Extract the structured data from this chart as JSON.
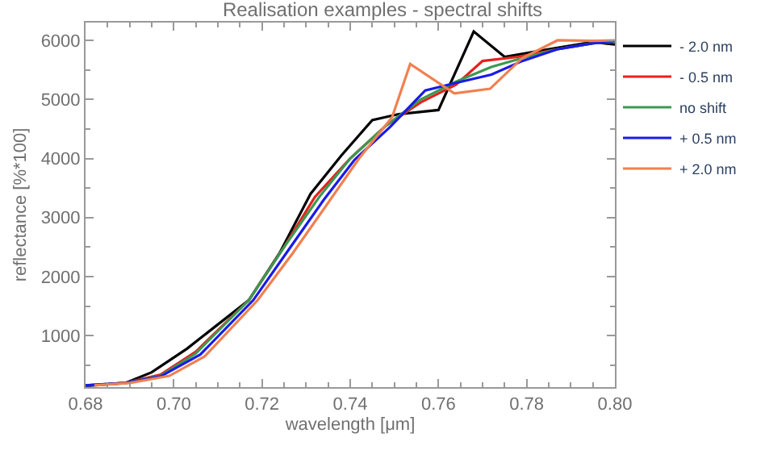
{
  "chart_data": {
    "type": "line",
    "title": "Realisation examples - spectral shifts",
    "xlabel": "wavelength [μm]",
    "ylabel": "reflectance [%*100]",
    "xlim": [
      0.68,
      0.8
    ],
    "xticks": [
      {
        "value": 0.68,
        "label": "0.68"
      },
      {
        "value": 0.7,
        "label": "0.70"
      },
      {
        "value": 0.72,
        "label": "0.72"
      },
      {
        "value": 0.74,
        "label": "0.74"
      },
      {
        "value": 0.76,
        "label": "0.76"
      },
      {
        "value": 0.78,
        "label": "0.78"
      },
      {
        "value": 0.8,
        "label": "0.80"
      }
    ],
    "ylim": [
      130,
      6300
    ],
    "yticks": [
      1000,
      2000,
      3000,
      4000,
      5000,
      6000
    ],
    "legend": "top right",
    "marker": "none",
    "line_style": "solid",
    "series": [
      {
        "name": "- 2.0 nm",
        "color": "#000000",
        "x": [
          0.68,
          0.689,
          0.695,
          0.703,
          0.717,
          0.724,
          0.731,
          0.738,
          0.745,
          0.751,
          0.76,
          0.768,
          0.775,
          0.785,
          0.795,
          0.8
        ],
        "values": [
          150,
          200,
          380,
          780,
          1600,
          2400,
          3400,
          4050,
          4650,
          4750,
          4820,
          6150,
          5720,
          5850,
          5970,
          5930
        ]
      },
      {
        "name": "- 0.5 nm",
        "color": "#e8201e",
        "x": [
          0.68,
          0.689,
          0.697,
          0.705,
          0.717,
          0.725,
          0.732,
          0.74,
          0.748,
          0.756,
          0.764,
          0.77,
          0.778,
          0.787,
          0.795,
          0.8
        ],
        "values": [
          160,
          200,
          340,
          730,
          1600,
          2500,
          3350,
          4000,
          4550,
          4950,
          5250,
          5650,
          5720,
          5850,
          5950,
          5980
        ]
      },
      {
        "name": "no shift",
        "color": "#3a9a50",
        "x": [
          0.68,
          0.689,
          0.697,
          0.705,
          0.717,
          0.725,
          0.733,
          0.74,
          0.748,
          0.756,
          0.764,
          0.772,
          0.779,
          0.787,
          0.795,
          0.8
        ],
        "values": [
          160,
          200,
          320,
          700,
          1600,
          2500,
          3350,
          4000,
          4550,
          5000,
          5300,
          5550,
          5700,
          5850,
          5950,
          5980
        ]
      },
      {
        "name": "+ 0.5 nm",
        "color": "#1a1ae6",
        "x": [
          0.68,
          0.689,
          0.697,
          0.706,
          0.718,
          0.726,
          0.734,
          0.741,
          0.749,
          0.757,
          0.764,
          0.772,
          0.779,
          0.787,
          0.795,
          0.8
        ],
        "values": [
          160,
          200,
          310,
          680,
          1600,
          2450,
          3300,
          3980,
          4530,
          5150,
          5280,
          5420,
          5650,
          5850,
          5950,
          5990
        ]
      },
      {
        "name": "+ 2.0 nm",
        "color": "#f08050",
        "x": [
          0.682,
          0.69,
          0.699,
          0.707,
          0.719,
          0.727,
          0.735,
          0.742,
          0.7495,
          0.7536,
          0.7636,
          0.7717,
          0.779,
          0.787,
          0.795,
          0.8
        ],
        "values": [
          160,
          200,
          320,
          650,
          1600,
          2400,
          3250,
          4000,
          4700,
          5600,
          5100,
          5180,
          5700,
          6000,
          5990,
          6000
        ]
      }
    ]
  }
}
